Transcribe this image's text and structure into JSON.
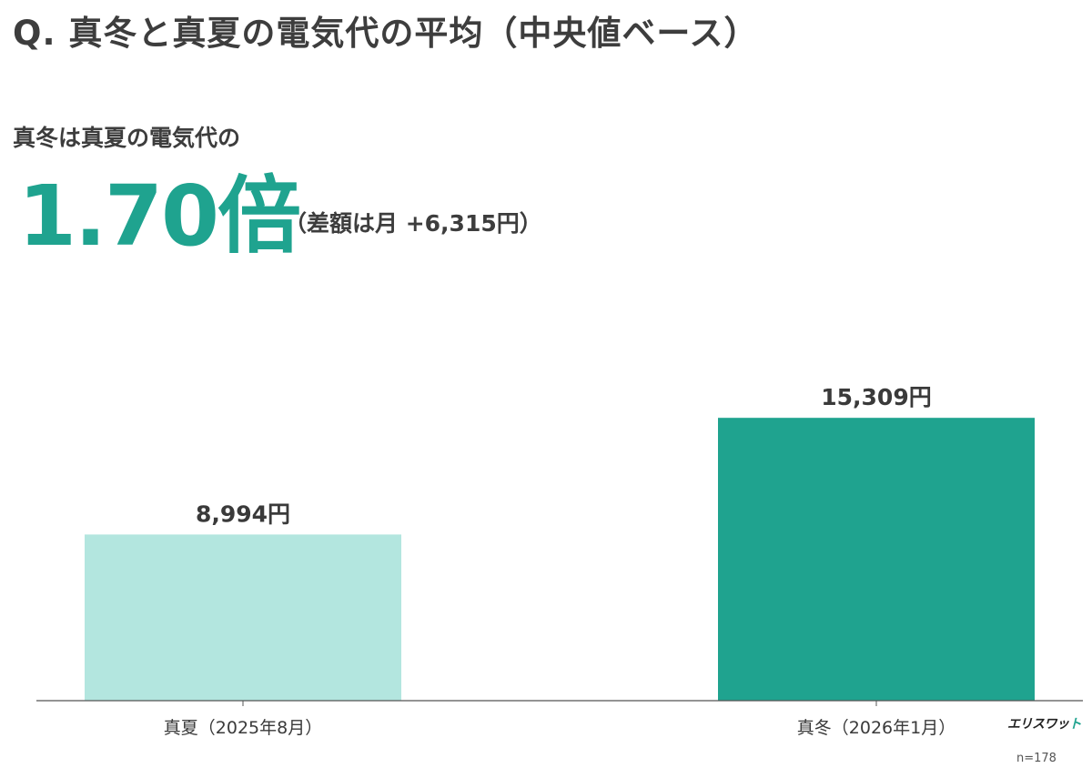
{
  "header": {
    "title": "Q. 真冬と真夏の電気代の平均（中央値ベース）"
  },
  "headline": {
    "lead": "真冬は真夏の電気代の",
    "ratio": "1.70倍",
    "difference": "（差額は月 +6,315円）"
  },
  "chart_data": {
    "type": "bar",
    "categories": [
      "真夏（2025年8月）",
      "真冬（2026年1月）"
    ],
    "values": [
      8994,
      15309
    ],
    "value_labels": [
      "8,994円",
      "15,309円"
    ],
    "colors": [
      "#b3e6df",
      "#1fa38f"
    ],
    "ylim": [
      0,
      16500
    ],
    "grid": false,
    "legend": "none"
  },
  "footer": {
    "logo_main": "エリスワッ",
    "logo_accent": "ト",
    "sample_size": "n=178"
  }
}
